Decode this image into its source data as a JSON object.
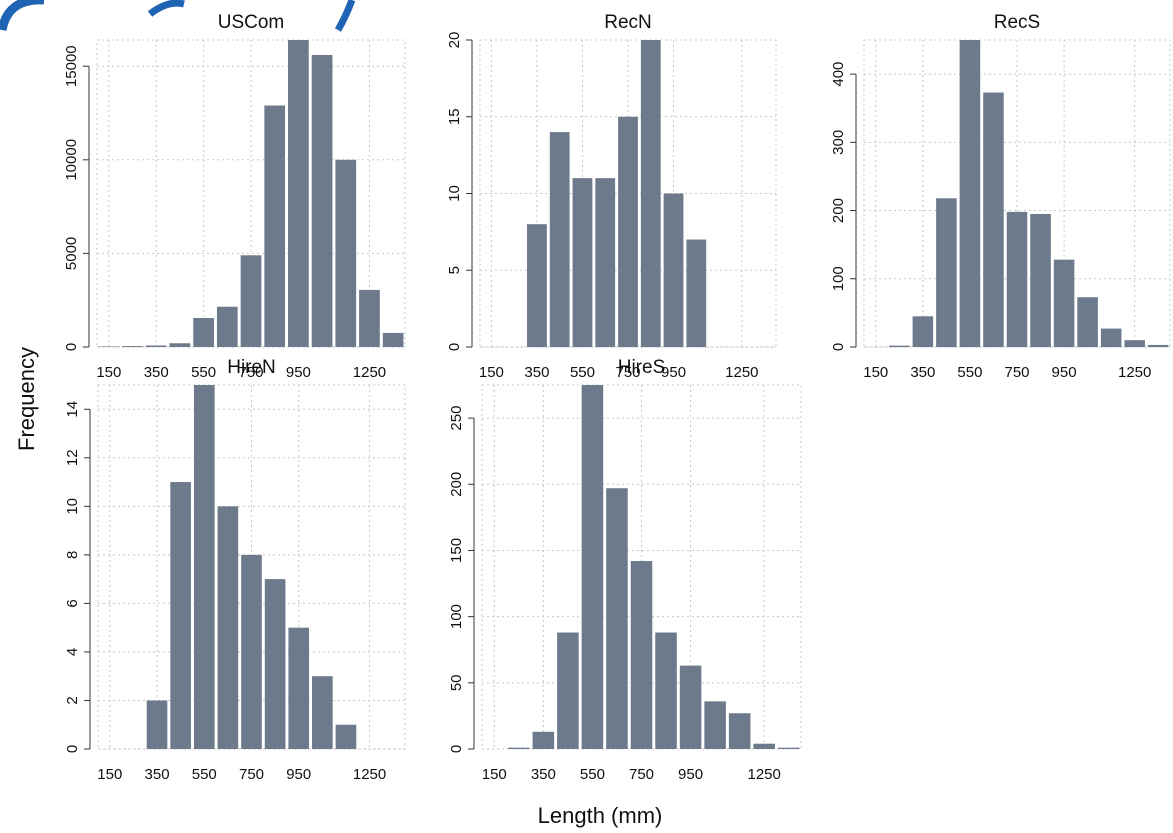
{
  "figure": {
    "ylabel": "Frequency",
    "xlabel": "Length (mm)",
    "bar_color": "#6c7a8b",
    "grid_color": "#c8c8c8",
    "header_color": "#1e63b4"
  },
  "chart_data": [
    {
      "type": "bar",
      "title": "USCom",
      "bin_width": 100,
      "bin_starts": [
        100,
        200,
        300,
        400,
        500,
        600,
        700,
        800,
        900,
        1000,
        1100,
        1200,
        1300
      ],
      "values": [
        30,
        50,
        80,
        200,
        1550,
        2150,
        4900,
        12900,
        16400,
        15600,
        10000,
        3050,
        750
      ],
      "ylim": [
        0,
        16400
      ],
      "yticks": [
        0,
        5000,
        10000,
        15000
      ],
      "xticks": [
        150,
        350,
        550,
        750,
        950,
        1250
      ],
      "xlim": [
        100,
        1400
      ],
      "grid": true
    },
    {
      "type": "bar",
      "title": "RecN",
      "bin_width": 100,
      "bin_starts": [
        300,
        400,
        500,
        600,
        700,
        800,
        900,
        1000
      ],
      "values": [
        8,
        14,
        11,
        11,
        15,
        20,
        10,
        7
      ],
      "ylim": [
        0,
        20
      ],
      "yticks": [
        0,
        5,
        10,
        15,
        20
      ],
      "xticks": [
        150,
        350,
        550,
        750,
        950,
        1250
      ],
      "xlim": [
        100,
        1400
      ],
      "grid": true
    },
    {
      "type": "bar",
      "title": "RecS",
      "bin_width": 100,
      "bin_starts": [
        200,
        300,
        400,
        500,
        600,
        700,
        800,
        900,
        1000,
        1100,
        1200,
        1300
      ],
      "values": [
        2,
        45,
        218,
        450,
        373,
        198,
        195,
        128,
        73,
        27,
        10,
        3
      ],
      "ylim": [
        0,
        450
      ],
      "yticks": [
        0,
        100,
        200,
        300,
        400
      ],
      "xticks": [
        150,
        350,
        550,
        750,
        950,
        1250
      ],
      "xlim": [
        100,
        1400
      ],
      "grid": true
    },
    {
      "type": "bar",
      "title": "HireN",
      "bin_width": 100,
      "bin_starts": [
        300,
        400,
        500,
        600,
        700,
        800,
        900,
        1000,
        1100
      ],
      "values": [
        2,
        11,
        15,
        10,
        8,
        7,
        5,
        3,
        1
      ],
      "ylim": [
        0,
        15
      ],
      "yticks": [
        0,
        2,
        4,
        6,
        8,
        10,
        12,
        14
      ],
      "xticks": [
        150,
        350,
        550,
        750,
        950,
        1250
      ],
      "xlim": [
        100,
        1400
      ],
      "grid": true
    },
    {
      "type": "bar",
      "title": "HireS",
      "bin_width": 100,
      "bin_starts": [
        200,
        300,
        400,
        500,
        600,
        700,
        800,
        900,
        1000,
        1100,
        1200,
        1300
      ],
      "values": [
        1,
        13,
        88,
        275,
        197,
        142,
        88,
        63,
        36,
        27,
        4,
        1
      ],
      "ylim": [
        0,
        275
      ],
      "yticks": [
        0,
        50,
        100,
        150,
        200,
        250
      ],
      "xticks": [
        150,
        350,
        550,
        750,
        950,
        1250
      ],
      "xlim": [
        100,
        1400
      ],
      "grid": true
    }
  ]
}
